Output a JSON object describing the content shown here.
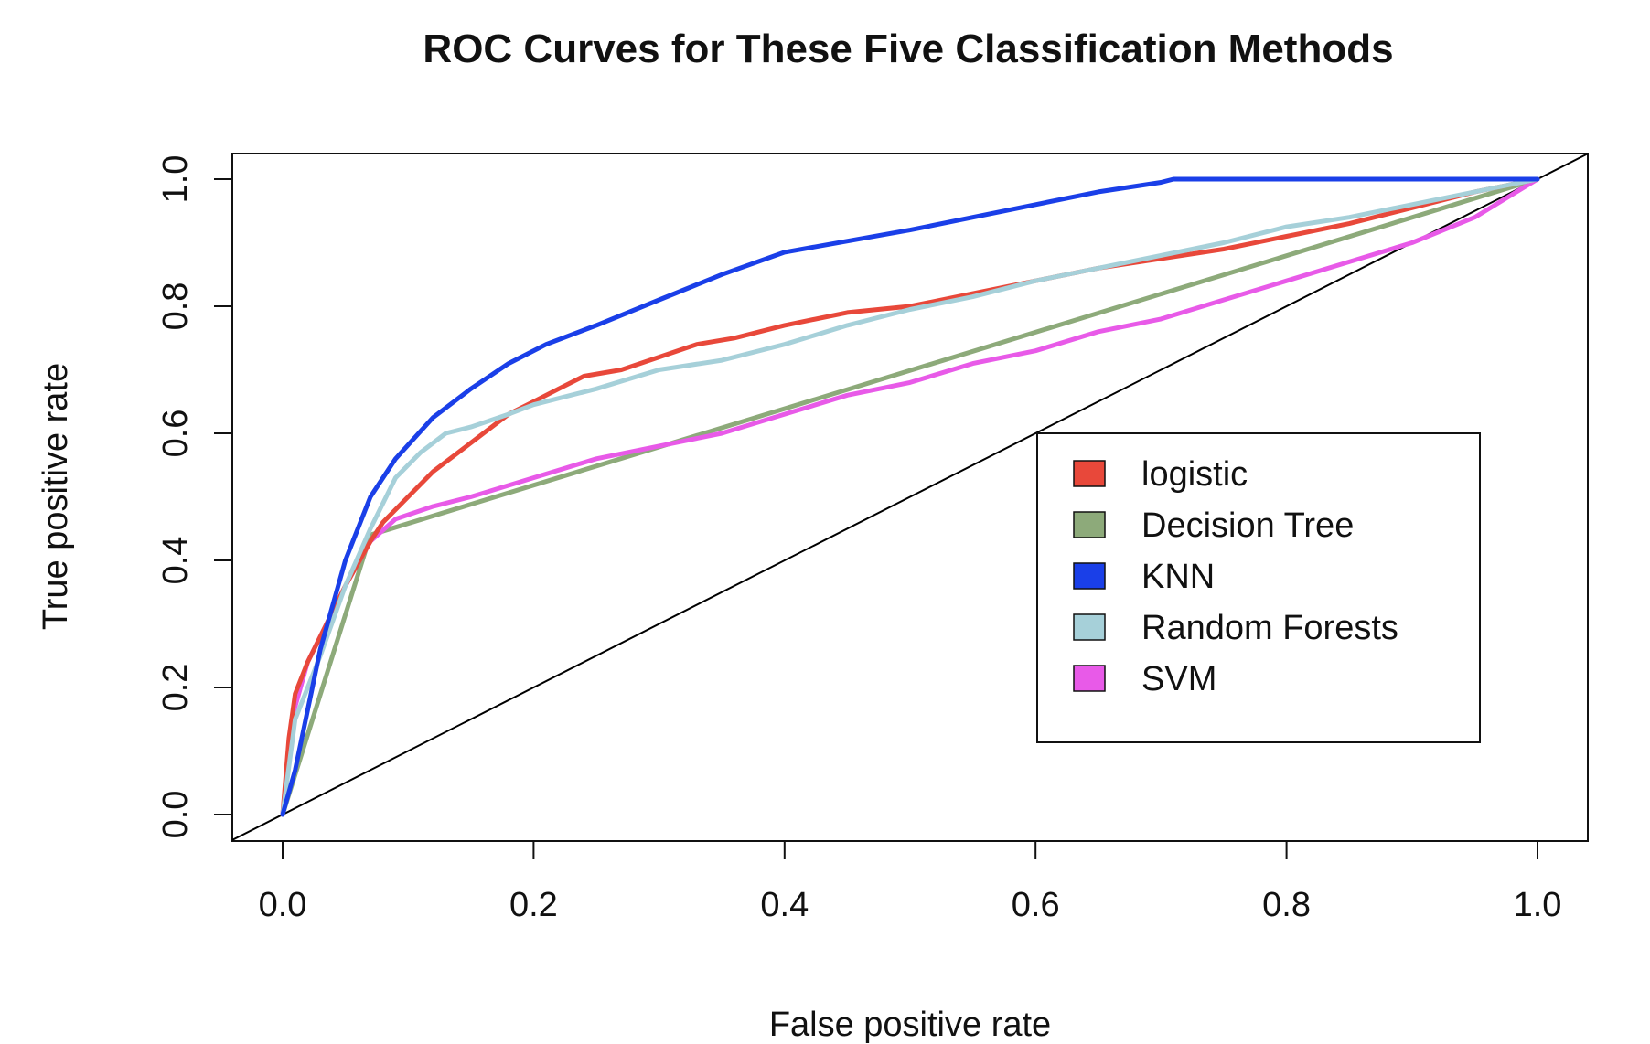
{
  "chart_data": {
    "type": "line",
    "title": "ROC Curves for These Five Classification Methods",
    "xlabel": "False positive rate",
    "ylabel": "True positive rate",
    "xlim": [
      0.0,
      1.0
    ],
    "ylim": [
      0.0,
      1.0
    ],
    "x_ticks": [
      "0.0",
      "0.2",
      "0.4",
      "0.6",
      "0.8",
      "1.0"
    ],
    "y_ticks": [
      "0.0",
      "0.2",
      "0.4",
      "0.6",
      "0.8",
      "1.0"
    ],
    "grid": false,
    "legend_position": "right",
    "reference_line": {
      "x": [
        0.0,
        1.0
      ],
      "y": [
        0.0,
        1.0
      ],
      "color": "#000000"
    },
    "series": [
      {
        "name": "logistic",
        "color": "#e8483a",
        "x": [
          0,
          0.005,
          0.01,
          0.02,
          0.03,
          0.05,
          0.07,
          0.08,
          0.09,
          0.1,
          0.12,
          0.14,
          0.16,
          0.18,
          0.2,
          0.22,
          0.24,
          0.27,
          0.3,
          0.33,
          0.36,
          0.4,
          0.45,
          0.5,
          0.55,
          0.6,
          0.65,
          0.7,
          0.75,
          0.8,
          0.85,
          0.9,
          0.95,
          1.0
        ],
        "y": [
          0,
          0.12,
          0.19,
          0.24,
          0.28,
          0.36,
          0.43,
          0.46,
          0.48,
          0.5,
          0.54,
          0.57,
          0.6,
          0.63,
          0.65,
          0.67,
          0.69,
          0.7,
          0.72,
          0.74,
          0.75,
          0.77,
          0.79,
          0.8,
          0.82,
          0.84,
          0.86,
          0.875,
          0.89,
          0.91,
          0.93,
          0.955,
          0.98,
          1.0
        ]
      },
      {
        "name": "Decision Tree",
        "color": "#8daa7a",
        "x": [
          0,
          0.07,
          1.0
        ],
        "y": [
          0,
          0.44,
          1.0
        ]
      },
      {
        "name": "KNN",
        "color": "#1a3fe8",
        "x": [
          0,
          0.01,
          0.03,
          0.05,
          0.07,
          0.09,
          0.12,
          0.15,
          0.18,
          0.21,
          0.25,
          0.3,
          0.35,
          0.4,
          0.5,
          0.6,
          0.65,
          0.7,
          0.71,
          1.0
        ],
        "y": [
          0,
          0.07,
          0.26,
          0.4,
          0.5,
          0.56,
          0.625,
          0.67,
          0.71,
          0.74,
          0.77,
          0.81,
          0.85,
          0.885,
          0.92,
          0.96,
          0.98,
          0.995,
          1.0,
          1.0
        ]
      },
      {
        "name": "Random Forests",
        "color": "#a6d0d9",
        "x": [
          0,
          0.01,
          0.03,
          0.05,
          0.07,
          0.09,
          0.11,
          0.13,
          0.15,
          0.18,
          0.2,
          0.25,
          0.3,
          0.35,
          0.4,
          0.45,
          0.5,
          0.55,
          0.6,
          0.65,
          0.7,
          0.75,
          0.8,
          0.85,
          0.9,
          1.0
        ],
        "y": [
          0,
          0.15,
          0.25,
          0.36,
          0.45,
          0.53,
          0.57,
          0.6,
          0.61,
          0.63,
          0.645,
          0.67,
          0.7,
          0.715,
          0.74,
          0.77,
          0.795,
          0.815,
          0.84,
          0.86,
          0.88,
          0.9,
          0.925,
          0.94,
          0.96,
          1.0
        ]
      },
      {
        "name": "SVM",
        "color": "#e85ae8",
        "x": [
          0,
          0.005,
          0.01,
          0.02,
          0.03,
          0.05,
          0.07,
          0.09,
          0.12,
          0.15,
          0.2,
          0.25,
          0.3,
          0.35,
          0.4,
          0.45,
          0.5,
          0.55,
          0.6,
          0.65,
          0.7,
          0.75,
          0.8,
          0.85,
          0.9,
          0.95,
          1.0
        ],
        "y": [
          0,
          0.1,
          0.17,
          0.24,
          0.28,
          0.36,
          0.43,
          0.465,
          0.485,
          0.5,
          0.53,
          0.56,
          0.58,
          0.6,
          0.63,
          0.66,
          0.68,
          0.71,
          0.73,
          0.76,
          0.78,
          0.81,
          0.84,
          0.87,
          0.9,
          0.94,
          1.0
        ]
      }
    ]
  }
}
